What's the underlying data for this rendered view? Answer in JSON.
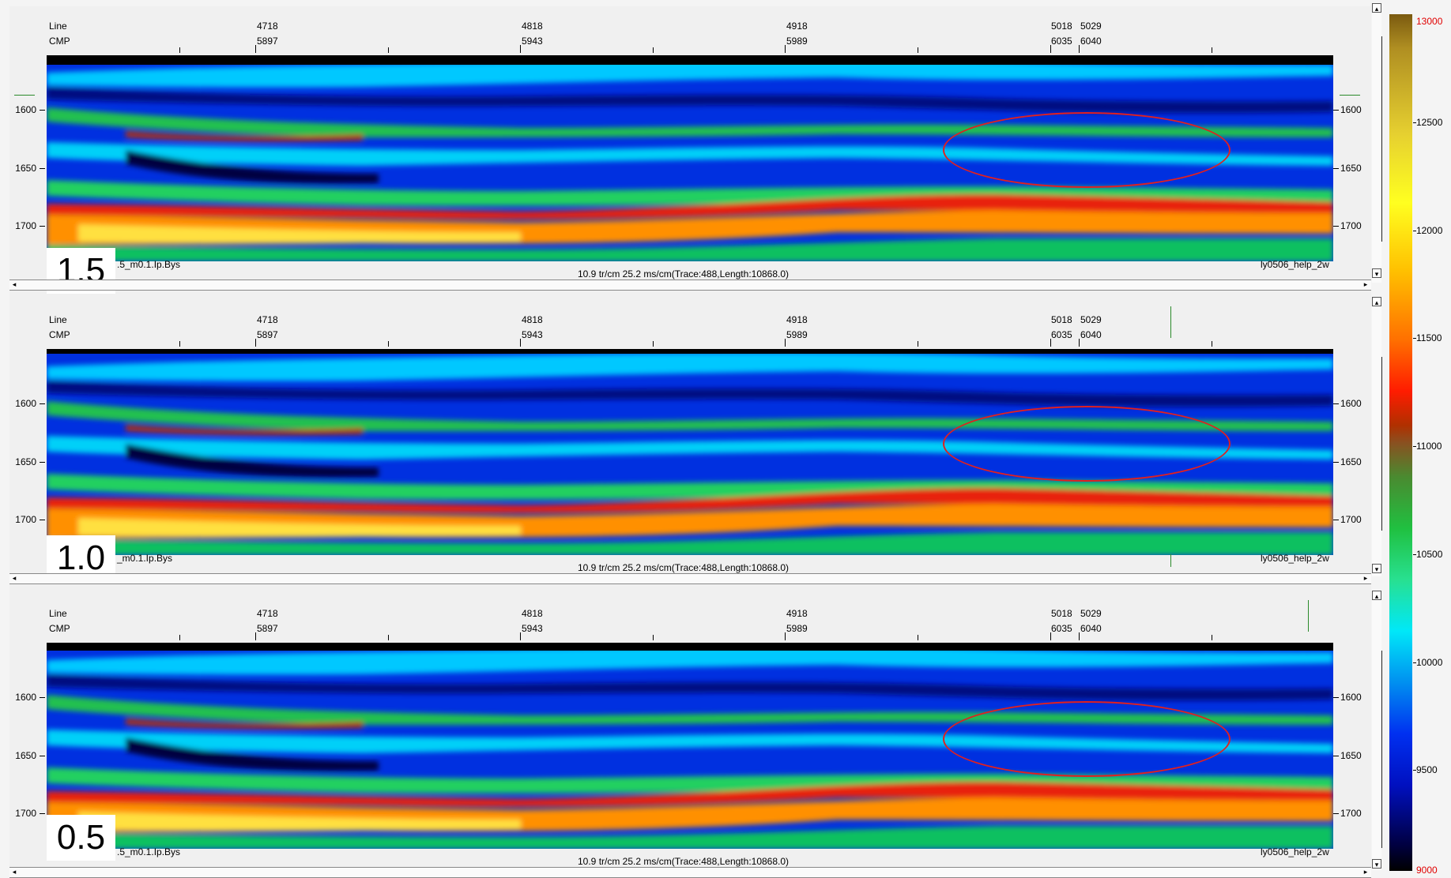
{
  "panels": [
    {
      "scale_label": "1.5",
      "bottom_left": ".5_m0.1.Ip.Bys"
    },
    {
      "scale_label": "1.0",
      "bottom_left": "_m0.1.Ip.Bys"
    },
    {
      "scale_label": "0.5",
      "bottom_left": ".5_m0.1.Ip.Bys"
    }
  ],
  "header": {
    "line_label": "Line",
    "cmp_label": "CMP",
    "line_values": [
      "4718",
      "4818",
      "4918",
      "5018",
      "5029"
    ],
    "cmp_values": [
      "5897",
      "5943",
      "5989",
      "6035",
      "6040"
    ]
  },
  "time_ticks": [
    "1600",
    "1650",
    "1700"
  ],
  "footer": {
    "center": "10.9 tr/cm 25.2 ms/cm(Trace:488,Length:10868.0)",
    "right": "ly0506_help_2w"
  },
  "colorbar": {
    "labels": [
      "13000",
      "12500",
      "12000",
      "11500",
      "11000",
      "10500",
      "10000",
      "9500",
      "9000"
    ],
    "top_color": "#e00000",
    "bottom_color": "#e00000"
  },
  "icons": {
    "scroll_left": "◂",
    "scroll_right": "▸",
    "scroll_up": "▴",
    "scroll_down": "▾"
  }
}
